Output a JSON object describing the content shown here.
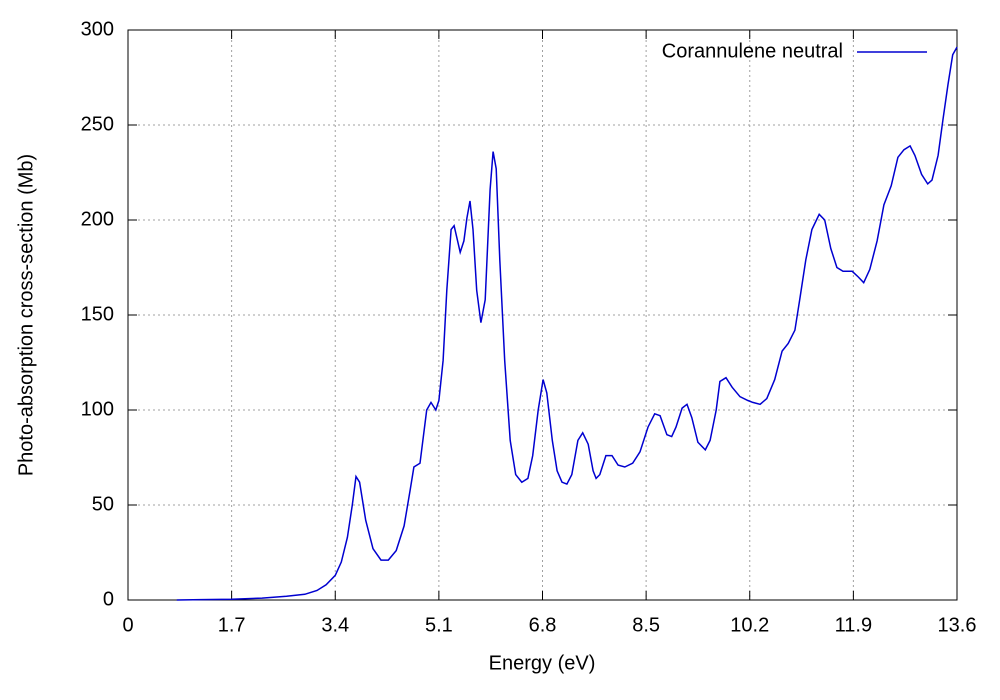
{
  "chart_data": {
    "type": "line",
    "xlabel": "Energy (eV)",
    "ylabel": "Photo-absorption cross-section (Mb)",
    "xlim": [
      0,
      13.6
    ],
    "ylim": [
      0,
      300
    ],
    "xticks": [
      0,
      1.7,
      3.4,
      5.1,
      6.8,
      8.5,
      10.2,
      11.9,
      13.6
    ],
    "yticks": [
      0,
      50,
      100,
      150,
      200,
      250,
      300
    ],
    "grid": true,
    "legend": "top right",
    "x": [
      0.8,
      1.2,
      1.7,
      2.2,
      2.6,
      2.9,
      3.1,
      3.25,
      3.4,
      3.5,
      3.6,
      3.68,
      3.74,
      3.8,
      3.9,
      4.02,
      4.15,
      4.27,
      4.4,
      4.53,
      4.63,
      4.69,
      4.79,
      4.9,
      4.97,
      5.05,
      5.1,
      5.17,
      5.23,
      5.3,
      5.35,
      5.45,
      5.51,
      5.56,
      5.61,
      5.66,
      5.72,
      5.79,
      5.86,
      5.94,
      5.99,
      6.04,
      6.1,
      6.18,
      6.27,
      6.36,
      6.46,
      6.56,
      6.64,
      6.73,
      6.81,
      6.87,
      6.96,
      7.04,
      7.12,
      7.2,
      7.28,
      7.38,
      7.46,
      7.55,
      7.63,
      7.68,
      7.74,
      7.84,
      7.94,
      8.04,
      8.15,
      8.28,
      8.4,
      8.53,
      8.64,
      8.73,
      8.84,
      8.92,
      8.99,
      9.09,
      9.17,
      9.25,
      9.35,
      9.47,
      9.55,
      9.65,
      9.71,
      9.81,
      9.91,
      10.04,
      10.17,
      10.25,
      10.37,
      10.48,
      10.61,
      10.73,
      10.83,
      10.94,
      11.02,
      11.12,
      11.22,
      11.34,
      11.43,
      11.53,
      11.63,
      11.73,
      11.88,
      11.98,
      12.07,
      12.17,
      12.29,
      12.4,
      12.52,
      12.63,
      12.73,
      12.83,
      12.91,
      13.02,
      13.12,
      13.19,
      13.29,
      13.37,
      13.45,
      13.53,
      13.6
    ],
    "series": [
      {
        "name": "Corannulene neutral",
        "color": "#0000d0",
        "values": [
          0,
          0.2,
          0.4,
          1,
          2,
          3,
          5,
          8,
          13,
          20,
          33,
          50,
          65,
          62,
          42,
          27,
          21,
          21,
          26,
          39,
          58,
          70,
          72,
          100,
          104,
          100,
          105,
          126,
          163,
          195,
          197,
          183,
          189,
          201,
          210,
          195,
          163,
          146,
          158,
          216,
          236,
          227,
          179,
          126,
          84,
          66,
          62,
          64,
          76,
          100,
          116,
          109,
          84,
          68,
          62,
          61,
          66,
          84,
          88,
          82,
          68,
          64,
          66,
          76,
          76,
          71,
          70,
          72,
          78,
          91,
          98,
          97,
          87,
          86,
          91,
          101,
          103,
          96,
          83,
          79,
          84,
          100,
          115,
          117,
          112,
          107,
          105,
          104,
          103,
          106,
          116,
          131,
          135,
          142,
          158,
          179,
          195,
          203,
          200,
          185,
          175,
          173,
          173,
          170,
          167,
          174,
          189,
          208,
          218,
          233,
          237,
          239,
          234,
          224,
          219,
          221,
          234,
          253,
          271,
          287,
          291
        ]
      }
    ]
  }
}
